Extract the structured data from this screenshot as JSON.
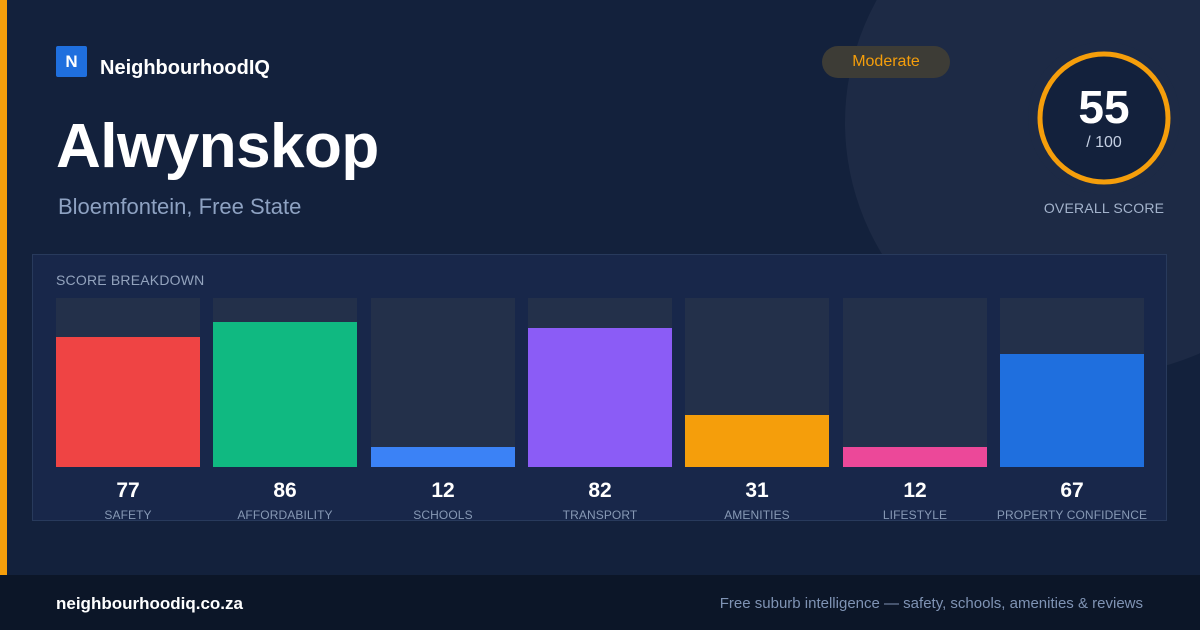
{
  "brand": {
    "logo_letter": "N",
    "name": "NeighbourhoodIQ"
  },
  "suburb": {
    "name": "Alwynskop",
    "location": "Bloemfontein, Free State"
  },
  "rating": {
    "label": "Moderate",
    "color": "#f59e0b"
  },
  "overall": {
    "score": "55",
    "max": "/ 100",
    "caption": "OVERALL SCORE",
    "fraction": 0.55
  },
  "breakdown": {
    "title": "SCORE BREAKDOWN",
    "items": [
      {
        "label": "SAFETY",
        "value": "77",
        "color": "#ef4444"
      },
      {
        "label": "AFFORDABILITY",
        "value": "86",
        "color": "#10b981"
      },
      {
        "label": "SCHOOLS",
        "value": "12",
        "color": "#3b82f6"
      },
      {
        "label": "TRANSPORT",
        "value": "82",
        "color": "#8b5cf6"
      },
      {
        "label": "AMENITIES",
        "value": "31",
        "color": "#f59e0b"
      },
      {
        "label": "LIFESTYLE",
        "value": "12",
        "color": "#ec4899"
      },
      {
        "label": "PROPERTY CONFIDENCE",
        "value": "67",
        "color": "#1f6fde"
      }
    ]
  },
  "footer": {
    "domain": "neighbourhoodiq.co.za",
    "tagline": "Free suburb intelligence — safety, schools, amenities & reviews"
  }
}
